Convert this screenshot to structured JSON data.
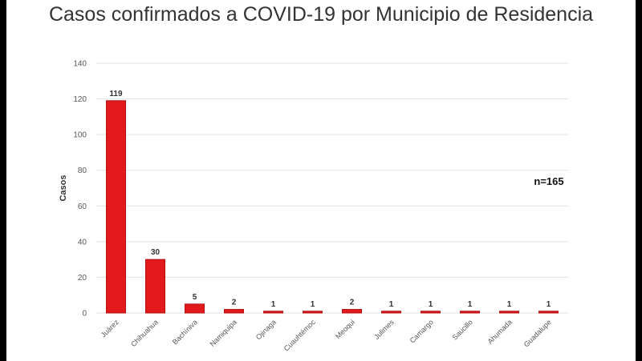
{
  "colors": {
    "bar": "#e31a1c",
    "bar_edge": "#b40f12",
    "grid": "#e2e2e2",
    "background": "#ffffff"
  },
  "chart_data": {
    "type": "bar",
    "title": "Casos confirmados a COVID-19 por Municipio de Residencia",
    "xlabel": "",
    "ylabel": "Casos",
    "ylim": [
      0,
      140
    ],
    "yticks": [
      0,
      20,
      40,
      60,
      80,
      100,
      120,
      140
    ],
    "grid": true,
    "annotation": "n=165",
    "categories": [
      "Juárez",
      "Chihuahua",
      "Bachíniva",
      "Namiquipa",
      "Ojinaga",
      "Cuauhtémoc",
      "Meoqui",
      "Julimes",
      "Camargo",
      "Saucillo",
      "Ahumada",
      "Guadalupe"
    ],
    "values": [
      119,
      30,
      5,
      2,
      1,
      1,
      2,
      1,
      1,
      1,
      1,
      1
    ]
  }
}
